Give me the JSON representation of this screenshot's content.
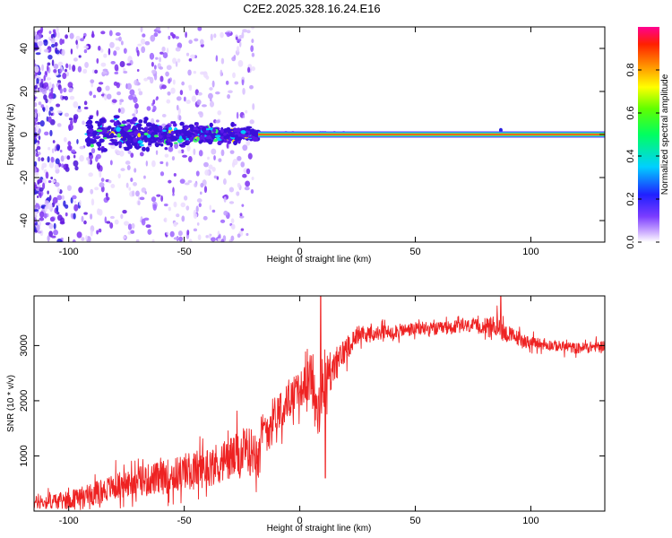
{
  "figure": {
    "title": "C2E2.2025.328.16.24.E16"
  },
  "chart_data": [
    {
      "type": "heatmap",
      "name": "spectrogram",
      "xlabel": "Height of straight line (km)",
      "ylabel": "Frequency (Hz)",
      "xlim": [
        -115,
        132
      ],
      "ylim": [
        -50,
        50
      ],
      "xticks": [
        -100,
        -50,
        0,
        50,
        100
      ],
      "xtick_labels": [
        "-100",
        "-50",
        "0",
        "50",
        "100"
      ],
      "yticks": [
        -40,
        -20,
        0,
        20,
        40
      ],
      "ytick_labels": [
        "-40",
        "-20",
        "0",
        "20",
        "40"
      ],
      "colorbar": {
        "label": "Normalized spectral amplitude",
        "range": [
          0,
          1
        ],
        "ticks": [
          0.0,
          0.2,
          0.4,
          0.6,
          0.8
        ],
        "tick_labels": [
          "0.0",
          "0.2",
          "0.4",
          "0.6",
          "0.8"
        ]
      },
      "features": [
        {
          "description_value": "strong carrier line",
          "freq_hz": 0,
          "x_range": [
            -18,
            132
          ],
          "amplitude": 1.0
        },
        {
          "description_value": "noisy band",
          "freq_hz_range": [
            -8,
            8
          ],
          "x_range": [
            -92,
            -18
          ],
          "amplitude": 0.35
        },
        {
          "description_value": "scattered noise",
          "freq_hz_range": [
            -50,
            50
          ],
          "x_range": [
            -115,
            -25
          ],
          "amplitude": 0.1
        }
      ]
    },
    {
      "type": "line",
      "name": "snr",
      "xlabel": "Height of straight line (km)",
      "ylabel": "SNR (10 * v/v)",
      "xlim": [
        -115,
        132
      ],
      "ylim": [
        0,
        3900
      ],
      "xticks": [
        -100,
        -50,
        0,
        50,
        100
      ],
      "xtick_labels": [
        "-100",
        "-50",
        "0",
        "50",
        "100"
      ],
      "yticks": [
        1000,
        2000,
        3000
      ],
      "ytick_labels": [
        "1000",
        "2000",
        "3000"
      ],
      "color": "#ee2222",
      "series": [
        {
          "name": "SNR trend",
          "x": [
            -115,
            -100,
            -90,
            -80,
            -70,
            -60,
            -50,
            -40,
            -30,
            -20,
            -15,
            -10,
            -5,
            0,
            5,
            8,
            12,
            15,
            20,
            25,
            30,
            40,
            50,
            60,
            70,
            80,
            85,
            90,
            100,
            110,
            120,
            132
          ],
          "y": [
            150,
            200,
            300,
            450,
            550,
            600,
            700,
            800,
            950,
            1100,
            1450,
            1800,
            2000,
            2200,
            2400,
            1700,
            2500,
            2600,
            2950,
            3200,
            3200,
            3250,
            3300,
            3300,
            3350,
            3350,
            3350,
            3200,
            3050,
            3000,
            2950,
            3000
          ],
          "noise": [
            150,
            200,
            250,
            300,
            330,
            380,
            420,
            450,
            500,
            550,
            500,
            450,
            400,
            400,
            500,
            600,
            500,
            400,
            300,
            200,
            180,
            160,
            150,
            150,
            150,
            160,
            250,
            200,
            130,
            120,
            120,
            120
          ]
        }
      ],
      "spikes": [
        {
          "x": 9,
          "y": 3900
        },
        {
          "x": 11,
          "y": 600
        },
        {
          "x": 87,
          "y": 3900
        }
      ]
    }
  ]
}
